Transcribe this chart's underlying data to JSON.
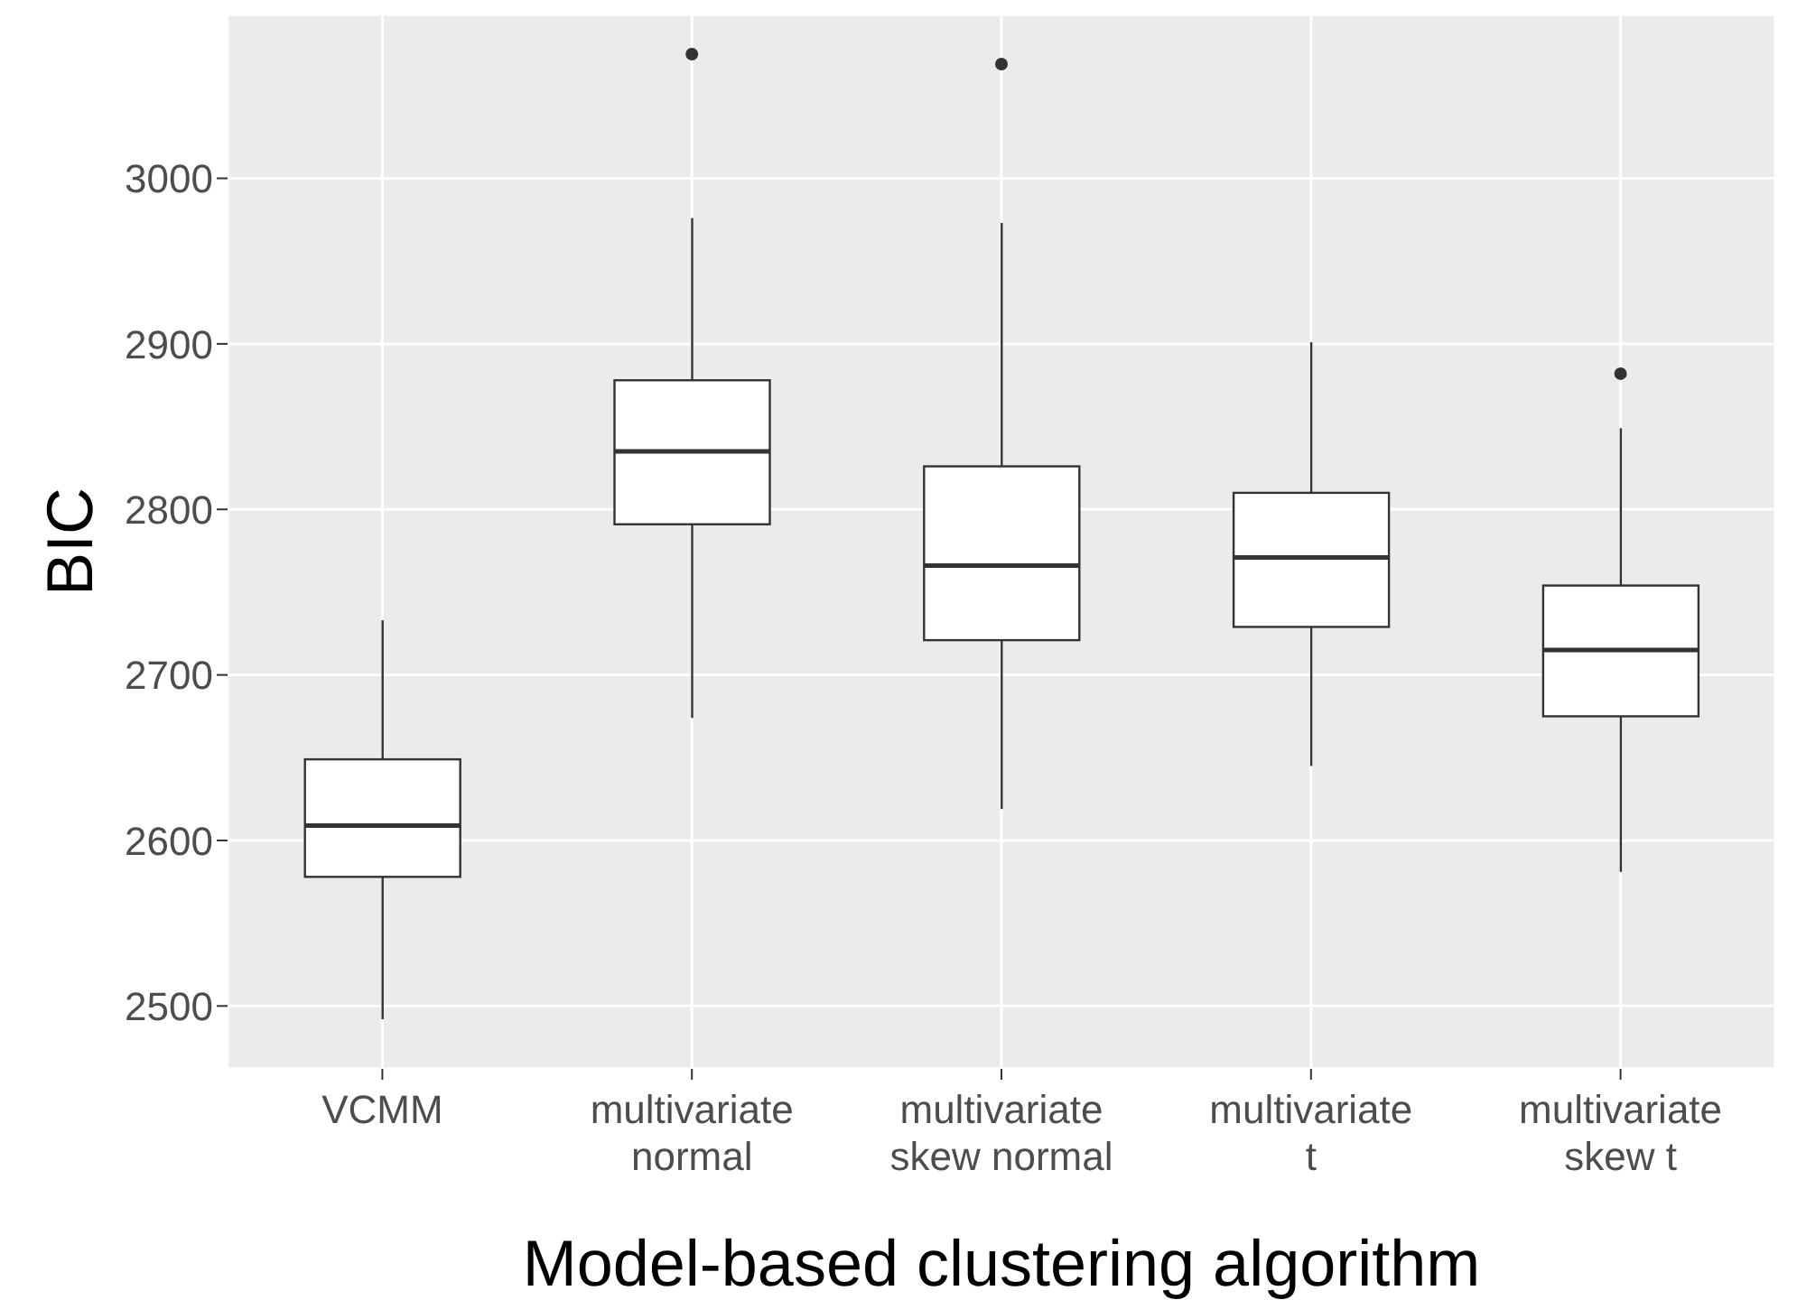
{
  "chart_data": {
    "type": "box",
    "xlabel": "Model-based clustering algorithm",
    "ylabel": "BIC",
    "categories": [
      "VCMM",
      "multivariate\nnormal",
      "multivariate\nskew normal",
      "multivariate\nt",
      "multivariate\nskew t"
    ],
    "boxes": [
      {
        "low": 2492,
        "q1": 2578,
        "median": 2609,
        "q3": 2649,
        "high": 2733
      },
      {
        "low": 2674,
        "q1": 2791,
        "median": 2835,
        "q3": 2878,
        "high": 2976,
        "outliers": [
          3075
        ]
      },
      {
        "low": 2619,
        "q1": 2721,
        "median": 2766,
        "q3": 2826,
        "high": 2973,
        "outliers": [
          3069
        ]
      },
      {
        "low": 2645,
        "q1": 2729,
        "median": 2771,
        "q3": 2810,
        "high": 2901
      },
      {
        "low": 2581,
        "q1": 2675,
        "median": 2715,
        "q3": 2754,
        "high": 2849,
        "outliers": [
          2882
        ]
      }
    ],
    "ylim": [
      2462,
      3099
    ],
    "yticks": [
      2500,
      2600,
      2700,
      2800,
      2900,
      3000
    ],
    "grid": true
  }
}
